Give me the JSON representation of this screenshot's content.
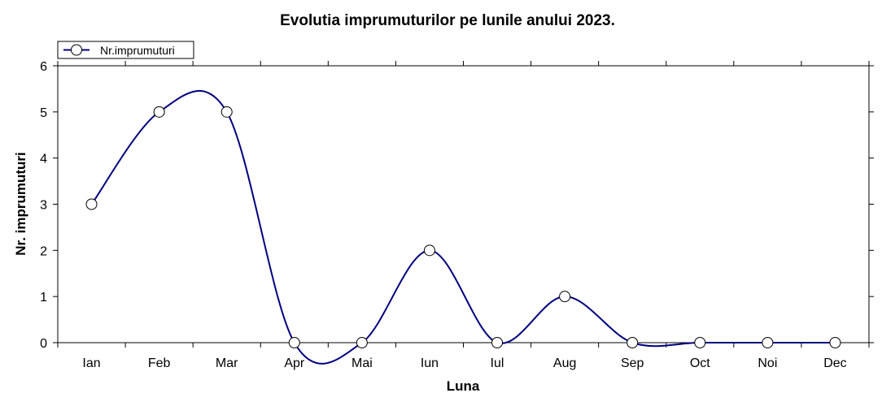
{
  "chart_data": {
    "type": "line",
    "title": "Evolutia imprumuturilor pe lunile anului 2023.",
    "xlabel": "Luna",
    "ylabel": "Nr. imprumuturi",
    "categories": [
      "Ian",
      "Feb",
      "Mar",
      "Apr",
      "Mai",
      "Iun",
      "Iul",
      "Aug",
      "Sep",
      "Oct",
      "Noi",
      "Dec"
    ],
    "series": [
      {
        "name": "Nr.imprumuturi",
        "values": [
          3,
          5,
          5,
          0,
          0,
          2,
          0,
          1,
          0,
          0,
          0,
          0
        ],
        "color": "#000080",
        "marker": "open-circle",
        "smooth": true
      }
    ],
    "ylim": [
      0,
      6
    ],
    "yticks": [
      0,
      1,
      2,
      3,
      4,
      5,
      6
    ],
    "grid": false,
    "legend": "top-left"
  }
}
